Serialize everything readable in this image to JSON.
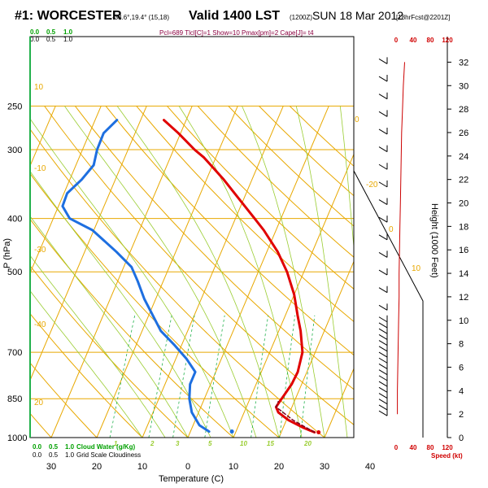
{
  "header": {
    "station": "#1: WORCESTER",
    "coords": "-33.6°,19.4° (15,18)",
    "valid": "Valid 1400 LST",
    "utc": "(1200Z)",
    "date": "SUN 18 Mar 2012",
    "forecast": "[18hrFcst@2201Z]",
    "params": "Pcl=689 Tlcl[C]=1 Show=10 Pmax[pm]=2 Cape[J]= t4"
  },
  "chart_data": {
    "type": "skew-t",
    "xlabel": "Temperature (C)",
    "ylabel": "P (hPa)",
    "y2label": "Height (1000 Feet)",
    "pressure_ticks": [
      "250",
      "300",
      "400",
      "500",
      "700",
      "850",
      "1000"
    ],
    "temp_ticks": [
      "30",
      "20",
      "10",
      "0",
      "10",
      "20",
      "30",
      "40"
    ],
    "height_ticks": [
      "32",
      "30",
      "28",
      "26",
      "24",
      "22",
      "20",
      "18",
      "16",
      "14",
      "12",
      "10",
      "8",
      "6",
      "4",
      "2",
      "0"
    ],
    "speed_ticks": [
      "0",
      "40",
      "80",
      "120"
    ],
    "speed_label": "Speed (kt)",
    "cloud_water_label": "Cloud Water (g/Kg)",
    "cloud_scale_labels": [
      "0.0",
      "0.5",
      "1.0"
    ],
    "grid_cloud_label": "Grid Scale Cloudiness",
    "grid_scale_labels": [
      "0.0",
      "0.5",
      "1.0"
    ],
    "mixing_ratio_labels": [
      "1",
      "2",
      "3",
      "5",
      "10",
      "15",
      "20"
    ],
    "dry_adiabat_labels": [
      "10",
      "0",
      "-10",
      "-20",
      "-30",
      "-40"
    ],
    "moist_adiabat_labels": [
      "0",
      "10",
      "20"
    ],
    "temperature": [
      {
        "p": 978,
        "t": 27.3
      },
      {
        "p": 960,
        "t": 24.5
      },
      {
        "p": 930,
        "t": 20.5
      },
      {
        "p": 900,
        "t": 17.5
      },
      {
        "p": 880,
        "t": 16.5
      },
      {
        "p": 860,
        "t": 16.8
      },
      {
        "p": 830,
        "t": 17.3
      },
      {
        "p": 800,
        "t": 17.8
      },
      {
        "p": 760,
        "t": 18.0
      },
      {
        "p": 700,
        "t": 17.2
      },
      {
        "p": 640,
        "t": 14.8
      },
      {
        "p": 600,
        "t": 12.7
      },
      {
        "p": 550,
        "t": 10.0
      },
      {
        "p": 500,
        "t": 6.3
      },
      {
        "p": 460,
        "t": 2.4
      },
      {
        "p": 420,
        "t": -2.7
      },
      {
        "p": 400,
        "t": -5.8
      },
      {
        "p": 370,
        "t": -10.8
      },
      {
        "p": 340,
        "t": -16.2
      },
      {
        "p": 310,
        "t": -22.6
      },
      {
        "p": 300,
        "t": -25.4
      },
      {
        "p": 280,
        "t": -30.5
      },
      {
        "p": 265,
        "t": -34.9
      }
    ],
    "dewpoint": [
      {
        "p": 975,
        "t": 4.1
      },
      {
        "p": 950,
        "t": 1.4
      },
      {
        "p": 900,
        "t": -1.5
      },
      {
        "p": 850,
        "t": -3.3
      },
      {
        "p": 800,
        "t": -4.5
      },
      {
        "p": 760,
        "t": -4.5
      },
      {
        "p": 720,
        "t": -7.6
      },
      {
        "p": 680,
        "t": -11.5
      },
      {
        "p": 640,
        "t": -15.9
      },
      {
        "p": 600,
        "t": -19.1
      },
      {
        "p": 560,
        "t": -22.5
      },
      {
        "p": 520,
        "t": -25.6
      },
      {
        "p": 490,
        "t": -28.3
      },
      {
        "p": 460,
        "t": -33.0
      },
      {
        "p": 420,
        "t": -40.3
      },
      {
        "p": 400,
        "t": -46.4
      },
      {
        "p": 380,
        "t": -49.1
      },
      {
        "p": 360,
        "t": -49.3
      },
      {
        "p": 340,
        "t": -47.4
      },
      {
        "p": 320,
        "t": -46.1
      },
      {
        "p": 300,
        "t": -46.8
      },
      {
        "p": 280,
        "t": -46.9
      },
      {
        "p": 265,
        "t": -45.2
      }
    ],
    "surface_temp": {
      "p": 978,
      "t": 28.2
    },
    "surface_dewpoint": {
      "p": 975,
      "t": 9.1
    },
    "parcel": [
      {
        "p": 978,
        "t": 27.3
      },
      {
        "p": 930,
        "t": 21.5
      },
      {
        "p": 880,
        "t": 16.5
      },
      {
        "p": 860,
        "t": 16.5
      }
    ],
    "wind_speed_profile": [
      {
        "h": 2,
        "s": 3
      },
      {
        "h": 4,
        "s": 3
      },
      {
        "h": 6,
        "s": 4
      },
      {
        "h": 8,
        "s": 5
      },
      {
        "h": 10,
        "s": 6
      },
      {
        "h": 12,
        "s": 7
      },
      {
        "h": 14,
        "s": 7
      },
      {
        "h": 16,
        "s": 8
      },
      {
        "h": 18,
        "s": 9
      },
      {
        "h": 20,
        "s": 10
      },
      {
        "h": 22,
        "s": 11
      },
      {
        "h": 24,
        "s": 12
      },
      {
        "h": 26,
        "s": 13
      },
      {
        "h": 28,
        "s": 15
      },
      {
        "h": 30,
        "s": 17
      },
      {
        "h": 32,
        "s": 20
      }
    ]
  },
  "colors": {
    "isobar": "#e8a800",
    "isotherm": "#e8a800",
    "adiabat": "#e8a800",
    "moist": "#9acd32",
    "mixing": "#22b14c",
    "temperature": "#e00000",
    "dewpoint": "#1e6fe0",
    "parcel": "#7a0020",
    "wind": "#cc0000",
    "cloud": "#22b14c"
  }
}
